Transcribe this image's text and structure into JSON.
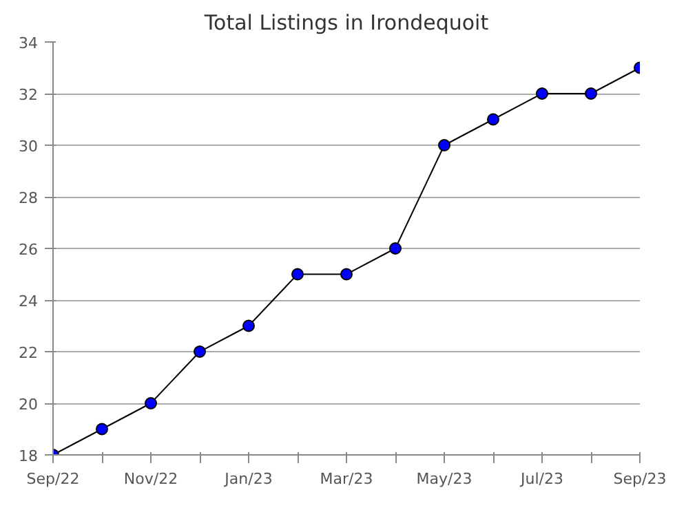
{
  "chart_data": {
    "type": "line",
    "title": "Total Listings in Irondequoit",
    "categories": [
      "Sep/22",
      null,
      "Nov/22",
      null,
      "Jan/23",
      null,
      "Mar/23",
      null,
      "May/23",
      null,
      "Jul/23",
      null,
      "Sep/23"
    ],
    "series": [
      {
        "color": "#0000ff",
        "values": [
          18,
          19,
          20,
          22,
          23,
          25,
          25,
          26,
          30,
          31,
          32,
          32,
          33
        ]
      }
    ],
    "ylim": [
      18,
      34
    ],
    "yticks": [
      18,
      20,
      22,
      24,
      26,
      28,
      30,
      32,
      34
    ],
    "grid": "y",
    "marker": "circle"
  }
}
